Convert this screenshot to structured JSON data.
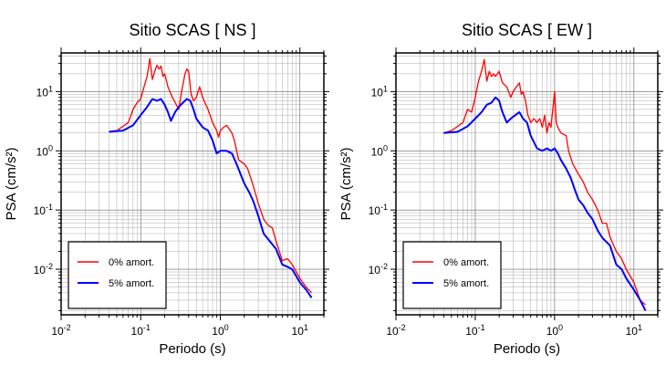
{
  "chart_data": [
    {
      "type": "line",
      "title": "Sitio SCAS [ NS ]",
      "xlabel": "Periodo (s)",
      "ylabel": "PSA (cm/s²)",
      "xscale": "log",
      "yscale": "log",
      "xlim": [
        0.01,
        20
      ],
      "ylim": [
        0.0017,
        45
      ],
      "x_ticks": [
        "10-2",
        "10-1",
        "100",
        "101"
      ],
      "y_ticks": [
        "10-2",
        "10-1",
        "100",
        "101"
      ],
      "grid": true,
      "legend_position": "bottom-left",
      "series": [
        {
          "name": "0% amort.",
          "color": "#ff0000",
          "points": [
            [
              0.04,
              2.1
            ],
            [
              0.05,
              2.2
            ],
            [
              0.06,
              2.6
            ],
            [
              0.07,
              3.0
            ],
            [
              0.08,
              5.0
            ],
            [
              0.09,
              6.5
            ],
            [
              0.1,
              7.5
            ],
            [
              0.11,
              12
            ],
            [
              0.12,
              18
            ],
            [
              0.13,
              36
            ],
            [
              0.14,
              16
            ],
            [
              0.15,
              22
            ],
            [
              0.16,
              28
            ],
            [
              0.17,
              24
            ],
            [
              0.18,
              27
            ],
            [
              0.19,
              18
            ],
            [
              0.2,
              20
            ],
            [
              0.22,
              12
            ],
            [
              0.25,
              8
            ],
            [
              0.28,
              6
            ],
            [
              0.3,
              5
            ],
            [
              0.33,
              11
            ],
            [
              0.36,
              20
            ],
            [
              0.38,
              24
            ],
            [
              0.4,
              22
            ],
            [
              0.43,
              9
            ],
            [
              0.46,
              7
            ],
            [
              0.5,
              8
            ],
            [
              0.55,
              12
            ],
            [
              0.6,
              8
            ],
            [
              0.7,
              5
            ],
            [
              0.8,
              3
            ],
            [
              0.9,
              2.2
            ],
            [
              0.95,
              1.7
            ],
            [
              1.0,
              2.2
            ],
            [
              1.1,
              2.5
            ],
            [
              1.2,
              2.7
            ],
            [
              1.4,
              2.0
            ],
            [
              1.5,
              1.5
            ],
            [
              1.7,
              0.7
            ],
            [
              2.0,
              0.6
            ],
            [
              2.2,
              0.5
            ],
            [
              2.5,
              0.3
            ],
            [
              2.8,
              0.18
            ],
            [
              3.0,
              0.13
            ],
            [
              3.5,
              0.07
            ],
            [
              4.0,
              0.055
            ],
            [
              4.5,
              0.05
            ],
            [
              5,
              0.03
            ],
            [
              6,
              0.014
            ],
            [
              7,
              0.015
            ],
            [
              8,
              0.012
            ],
            [
              10,
              0.007
            ],
            [
              12,
              0.005
            ],
            [
              14,
              0.004
            ]
          ]
        },
        {
          "name": "5% amort.",
          "color": "#0000ff",
          "points": [
            [
              0.04,
              2.1
            ],
            [
              0.06,
              2.2
            ],
            [
              0.08,
              2.7
            ],
            [
              0.1,
              4.0
            ],
            [
              0.12,
              5.5
            ],
            [
              0.14,
              7.5
            ],
            [
              0.16,
              7.0
            ],
            [
              0.18,
              7.5
            ],
            [
              0.2,
              6.0
            ],
            [
              0.22,
              4.5
            ],
            [
              0.24,
              3.2
            ],
            [
              0.27,
              4.5
            ],
            [
              0.3,
              5.5
            ],
            [
              0.34,
              6.5
            ],
            [
              0.38,
              7.5
            ],
            [
              0.42,
              7.0
            ],
            [
              0.46,
              5.0
            ],
            [
              0.5,
              3.5
            ],
            [
              0.6,
              2.5
            ],
            [
              0.7,
              2.2
            ],
            [
              0.8,
              1.5
            ],
            [
              0.9,
              0.9
            ],
            [
              1.0,
              1.0
            ],
            [
              1.2,
              1.0
            ],
            [
              1.4,
              0.9
            ],
            [
              1.6,
              0.6
            ],
            [
              1.8,
              0.4
            ],
            [
              2.0,
              0.28
            ],
            [
              2.3,
              0.2
            ],
            [
              2.6,
              0.14
            ],
            [
              3.0,
              0.08
            ],
            [
              3.5,
              0.04
            ],
            [
              4.0,
              0.032
            ],
            [
              5,
              0.022
            ],
            [
              6,
              0.012
            ],
            [
              7,
              0.011
            ],
            [
              8,
              0.01
            ],
            [
              10,
              0.006
            ],
            [
              12,
              0.0045
            ],
            [
              14,
              0.0033
            ]
          ]
        }
      ]
    },
    {
      "type": "line",
      "title": "Sitio SCAS [ EW ]",
      "xlabel": "Periodo (s)",
      "ylabel": "PSA (cm/s²)",
      "xscale": "log",
      "yscale": "log",
      "xlim": [
        0.01,
        20
      ],
      "ylim": [
        0.0017,
        45
      ],
      "x_ticks": [
        "10-2",
        "10-1",
        "100",
        "101"
      ],
      "y_ticks": [
        "10-2",
        "10-1",
        "100",
        "101"
      ],
      "grid": true,
      "legend_position": "bottom-left",
      "series": [
        {
          "name": "0% amort.",
          "color": "#ff0000",
          "points": [
            [
              0.04,
              2.0
            ],
            [
              0.05,
              2.2
            ],
            [
              0.06,
              2.6
            ],
            [
              0.07,
              3.0
            ],
            [
              0.08,
              5.0
            ],
            [
              0.09,
              4.5
            ],
            [
              0.1,
              8
            ],
            [
              0.11,
              15
            ],
            [
              0.12,
              22
            ],
            [
              0.13,
              35
            ],
            [
              0.14,
              15
            ],
            [
              0.15,
              22
            ],
            [
              0.16,
              18
            ],
            [
              0.17,
              20
            ],
            [
              0.18,
              18
            ],
            [
              0.2,
              22
            ],
            [
              0.22,
              14
            ],
            [
              0.25,
              12
            ],
            [
              0.28,
              8
            ],
            [
              0.3,
              10
            ],
            [
              0.33,
              12
            ],
            [
              0.36,
              14
            ],
            [
              0.38,
              9
            ],
            [
              0.4,
              10
            ],
            [
              0.43,
              7
            ],
            [
              0.46,
              4
            ],
            [
              0.5,
              3
            ],
            [
              0.55,
              3.5
            ],
            [
              0.6,
              3
            ],
            [
              0.65,
              3.5
            ],
            [
              0.7,
              2.5
            ],
            [
              0.75,
              4
            ],
            [
              0.8,
              2
            ],
            [
              0.85,
              3
            ],
            [
              0.9,
              2.5
            ],
            [
              1.0,
              10
            ],
            [
              1.05,
              3
            ],
            [
              1.1,
              2.5
            ],
            [
              1.2,
              2
            ],
            [
              1.4,
              1.8
            ],
            [
              1.5,
              1.0
            ],
            [
              1.7,
              0.6
            ],
            [
              2.0,
              0.4
            ],
            [
              2.3,
              0.3
            ],
            [
              2.6,
              0.2
            ],
            [
              3.0,
              0.15
            ],
            [
              3.5,
              0.1
            ],
            [
              4.0,
              0.06
            ],
            [
              4.5,
              0.06
            ],
            [
              5,
              0.035
            ],
            [
              6,
              0.02
            ],
            [
              7,
              0.015
            ],
            [
              8,
              0.01
            ],
            [
              10,
              0.006
            ],
            [
              12,
              0.003
            ],
            [
              14,
              0.0025
            ]
          ]
        },
        {
          "name": "5% amort.",
          "color": "#0000ff",
          "points": [
            [
              0.04,
              2.0
            ],
            [
              0.06,
              2.1
            ],
            [
              0.08,
              2.6
            ],
            [
              0.1,
              3.5
            ],
            [
              0.12,
              4.5
            ],
            [
              0.14,
              6.0
            ],
            [
              0.16,
              6.5
            ],
            [
              0.18,
              8.0
            ],
            [
              0.2,
              7.0
            ],
            [
              0.22,
              4.5
            ],
            [
              0.25,
              3.0
            ],
            [
              0.28,
              3.5
            ],
            [
              0.32,
              4.0
            ],
            [
              0.36,
              4.5
            ],
            [
              0.4,
              3.5
            ],
            [
              0.45,
              3.0
            ],
            [
              0.5,
              1.8
            ],
            [
              0.6,
              1.1
            ],
            [
              0.7,
              1.0
            ],
            [
              0.8,
              1.1
            ],
            [
              0.9,
              1.0
            ],
            [
              1.0,
              1.1
            ],
            [
              1.1,
              0.9
            ],
            [
              1.2,
              0.7
            ],
            [
              1.4,
              0.5
            ],
            [
              1.6,
              0.35
            ],
            [
              1.8,
              0.22
            ],
            [
              2.0,
              0.15
            ],
            [
              2.3,
              0.12
            ],
            [
              2.6,
              0.09
            ],
            [
              3.0,
              0.07
            ],
            [
              3.5,
              0.045
            ],
            [
              4.0,
              0.034
            ],
            [
              5,
              0.025
            ],
            [
              6,
              0.012
            ],
            [
              7,
              0.01
            ],
            [
              8,
              0.007
            ],
            [
              10,
              0.0045
            ],
            [
              12,
              0.003
            ],
            [
              14,
              0.002
            ]
          ]
        }
      ]
    }
  ]
}
